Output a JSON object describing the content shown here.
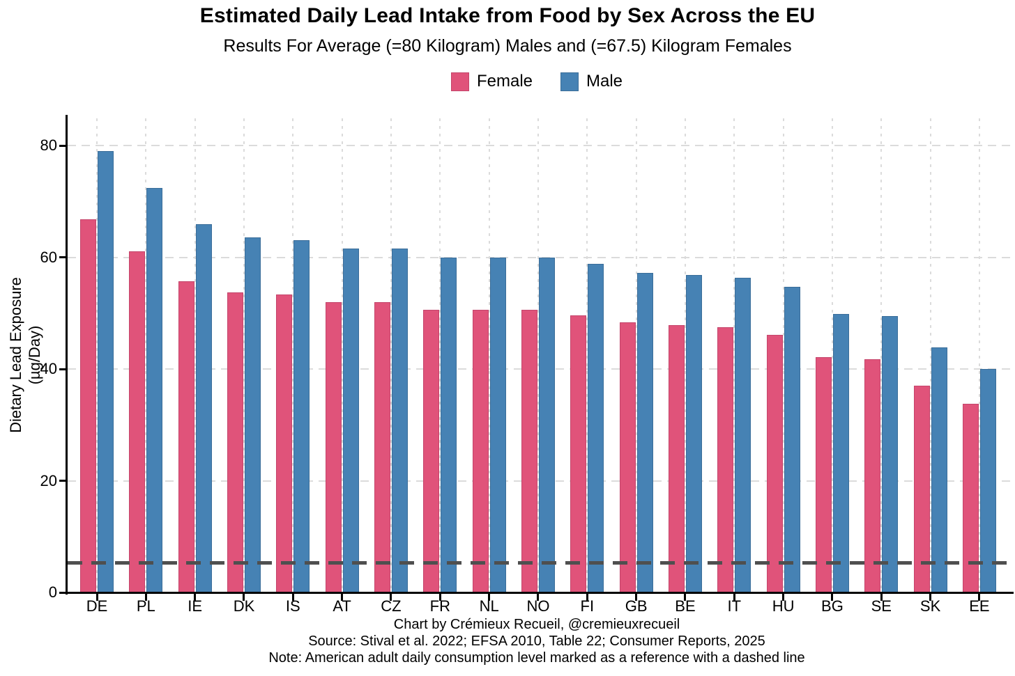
{
  "title": "Estimated Daily Lead Intake from Food by Sex Across the EU",
  "subtitle": "Results For Average (=80 Kilogram) Males and (=67.5) Kilogram Females",
  "legend": {
    "female_label": "Female",
    "male_label": "Male"
  },
  "colors": {
    "female": "#e0537a",
    "female_border": "#c4456b",
    "male": "#4682b4",
    "male_border": "#3a6d99",
    "grid": "#dbdbdb",
    "axis": "#000000",
    "reference_line": "#4f4f4f"
  },
  "footer": {
    "line1": "Chart by Crémieux Recueil, @cremieuxrecueil",
    "line2": "Source: Stival et al. 2022; EFSA 2010, Table 22; Consumer Reports, 2025",
    "line3": "Note: American adult daily consumption level marked as a reference with a dashed line"
  },
  "chart_data": {
    "type": "bar",
    "title": "Estimated Daily Lead Intake from Food by Sex Across the EU",
    "subtitle": "Results For Average (=80 Kilogram) Males and (=67.5) Kilogram Females",
    "categories": [
      "DE",
      "PL",
      "IE",
      "DK",
      "IS",
      "AT",
      "CZ",
      "FR",
      "NL",
      "NO",
      "FI",
      "GB",
      "BE",
      "IT",
      "HU",
      "BG",
      "SE",
      "SK",
      "EE"
    ],
    "series": [
      {
        "name": "Female",
        "color": "#e0537a",
        "values": [
          66.8,
          61.1,
          55.7,
          53.7,
          53.3,
          52.0,
          52.0,
          50.6,
          50.6,
          50.6,
          49.6,
          48.3,
          47.9,
          47.5,
          46.1,
          42.1,
          41.8,
          37.0,
          33.8
        ]
      },
      {
        "name": "Male",
        "color": "#4682b4",
        "values": [
          79.0,
          72.4,
          65.9,
          63.5,
          63.1,
          61.6,
          61.6,
          60.0,
          60.0,
          60.0,
          58.8,
          57.2,
          56.8,
          56.3,
          54.7,
          49.9,
          49.5,
          43.9,
          40.0
        ]
      }
    ],
    "xlabel": "",
    "ylabel": "Dietary Lead Exposure (µg/Day)",
    "ylabel_line1": "Dietary Lead Exposure",
    "ylabel_line2": "(µg/Day)",
    "yticks": [
      0,
      20,
      40,
      60,
      80
    ],
    "ylim": [
      0,
      85
    ],
    "grid": "dashed major, horizontal and vertical",
    "legend_position": "top center",
    "reference_line": {
      "value": 5.3,
      "style": "dashed",
      "meaning": "American adult daily consumption level"
    }
  }
}
